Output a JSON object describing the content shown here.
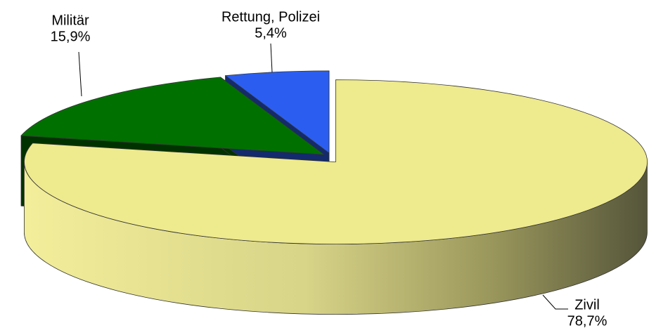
{
  "chart_data": {
    "type": "pie",
    "categories": [
      "Zivil",
      "Militär",
      "Rettung, Polizei"
    ],
    "values": [
      78.7,
      15.9,
      5.4
    ],
    "value_labels": [
      "78,7%",
      "15,9%",
      "5,4%"
    ],
    "colors": [
      "#eeea8e",
      "#007000",
      "#2b5ef0"
    ]
  }
}
